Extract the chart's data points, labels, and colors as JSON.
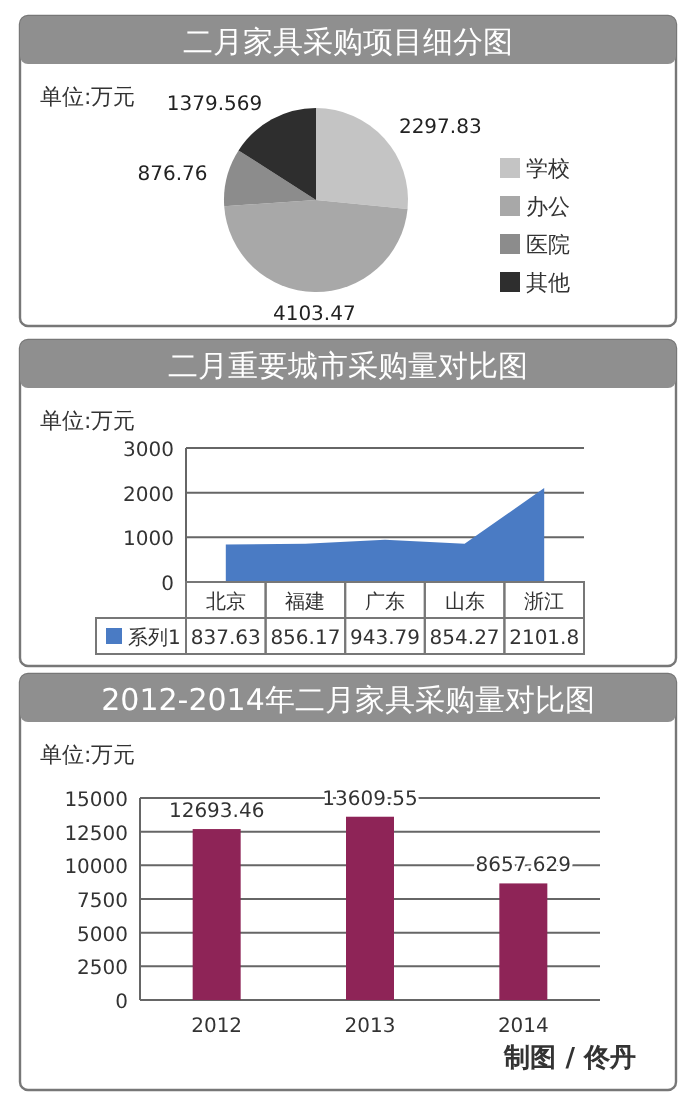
{
  "chart_data": [
    {
      "type": "pie",
      "title": "二月家具采购项目细分图",
      "annotations": [
        "单位:万元"
      ],
      "categories": [
        "学校",
        "办公",
        "医院",
        "其他"
      ],
      "values": [
        2297.83,
        4103.47,
        876.76,
        1379.569
      ],
      "colors": [
        "#c4c4c4",
        "#a8a8a8",
        "#8c8c8c",
        "#2e2e2e"
      ],
      "data_labels": true,
      "legend": "right"
    },
    {
      "type": "area",
      "title": "二月重要城市采购量对比图",
      "annotations": [
        "单位:万元"
      ],
      "categories": [
        "北京",
        "福建",
        "广东",
        "山东",
        "浙江"
      ],
      "series": [
        {
          "name": "系列1",
          "color": "#4a7bc4",
          "values": [
            837.63,
            856.17,
            943.79,
            854.27,
            2101.8
          ]
        }
      ],
      "ylim": [
        0,
        3000
      ],
      "yticks": [
        0,
        1000,
        2000,
        3000
      ],
      "grid": "y",
      "data_labels": true,
      "legend": "bottom"
    },
    {
      "type": "bar",
      "title": "2012-2014年二月家具采购量对比图",
      "annotations": [
        "单位:万元",
        "制图 / 佟丹"
      ],
      "categories": [
        "2012",
        "2013",
        "2014"
      ],
      "values": [
        12693.46,
        13609.55,
        8657.629
      ],
      "color": "#8e2457",
      "ylim": [
        0,
        15000
      ],
      "yticks": [
        0,
        2500,
        5000,
        7500,
        10000,
        12500,
        15000
      ],
      "grid": "y",
      "data_labels": true
    }
  ]
}
